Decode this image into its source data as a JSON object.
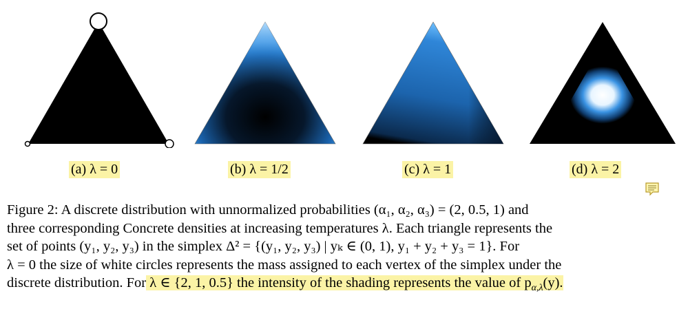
{
  "figure": {
    "panels": [
      {
        "id": "a",
        "caption": "(a) λ = 0"
      },
      {
        "id": "b",
        "caption": "(b) λ = 1/2"
      },
      {
        "id": "c",
        "caption": "(c) λ = 1"
      },
      {
        "id": "d",
        "caption": "(d) λ = 2"
      }
    ],
    "caption": {
      "line1": "Figure 2: A discrete distribution with unnormalized probabilities (α₁, α₂, α₃) = (2, 0.5, 1) and",
      "line2": "three corresponding Concrete densities at increasing temperatures λ. Each triangle represents the",
      "line3": "set of points (y₁, y₂, y₃) in the simplex Δ² = {(y₁, y₂, y₃) | yₖ ∈ (0, 1), y₁ + y₂ + y₃ = 1}. For",
      "line4": "λ = 0 the size of white circles represents the mass assigned to each vertex of the simplex under the",
      "line5a": "discrete distribution. For",
      "line5b": " λ ∈ {2, 1, 0.5} the intensity of the shading represents the value of p",
      "line5c": "α,λ",
      "line5d": "(y)."
    },
    "colors": {
      "highlight": "#fbf3a6",
      "shading_blue": "#2f86d8",
      "dark": "#000000",
      "light": "#ffffff"
    },
    "icons": {
      "note": "comment-note-icon"
    }
  }
}
